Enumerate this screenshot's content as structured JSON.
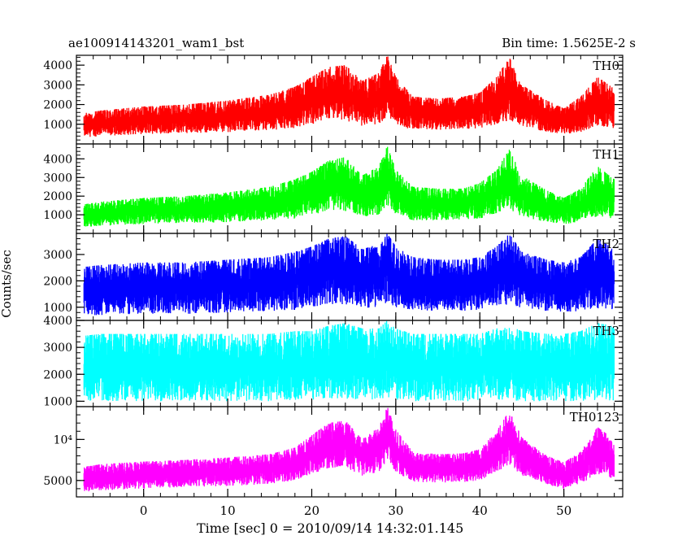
{
  "chart_data": {
    "type": "line",
    "title_left": "ae100914143201_wam1_bst",
    "title_right": "Bin time: 1.5625E-2 s",
    "xlabel": "Time [sec] 0 = 2010/09/14 14:32:01.145",
    "ylabel": "Counts/sec",
    "xlim": [
      -8,
      57
    ],
    "x_ticks": [
      0,
      10,
      20,
      30,
      40,
      50
    ],
    "x_tick_labels": [
      "0",
      "10",
      "20",
      "30",
      "40",
      "50"
    ],
    "panels": [
      {
        "name": "TH0",
        "color": "#ff0000",
        "ylim": [
          0,
          4500
        ],
        "y_ticks": [
          1000,
          2000,
          3000,
          4000
        ],
        "y_tick_labels": [
          "1000",
          "2000",
          "3000",
          "4000"
        ],
        "series": {
          "x": [
            -8,
            -5,
            0,
            5,
            10,
            15,
            18,
            20,
            22,
            24,
            26,
            28,
            29,
            30,
            32,
            35,
            38,
            40,
            42,
            43.5,
            45,
            48,
            50,
            52,
            54,
            56
          ],
          "low": [
            300,
            400,
            500,
            550,
            600,
            700,
            800,
            1000,
            1200,
            1200,
            900,
            1000,
            1400,
            1000,
            700,
            700,
            750,
            800,
            1000,
            1200,
            900,
            600,
            500,
            600,
            900,
            800
          ],
          "high": [
            1500,
            1700,
            1900,
            2000,
            2200,
            2500,
            2900,
            3400,
            3900,
            4000,
            3200,
            3600,
            4500,
            3400,
            2400,
            2300,
            2400,
            2600,
            3400,
            4400,
            3000,
            2200,
            1800,
            2400,
            3400,
            2800
          ]
        }
      },
      {
        "name": "TH1",
        "color": "#00ff00",
        "ylim": [
          0,
          4800
        ],
        "y_ticks": [
          1000,
          2000,
          3000,
          4000
        ],
        "y_tick_labels": [
          "1000",
          "2000",
          "3000",
          "4000"
        ],
        "series": {
          "x": [
            -8,
            -5,
            0,
            5,
            10,
            15,
            18,
            20,
            22,
            24,
            26,
            28,
            29,
            30,
            32,
            35,
            38,
            40,
            42,
            43.5,
            45,
            48,
            50,
            52,
            54,
            56
          ],
          "low": [
            300,
            400,
            500,
            550,
            600,
            700,
            800,
            1000,
            1200,
            1200,
            900,
            1000,
            1500,
            1000,
            700,
            700,
            750,
            800,
            1000,
            1300,
            900,
            600,
            500,
            600,
            900,
            800
          ],
          "high": [
            1500,
            1700,
            1900,
            2000,
            2200,
            2500,
            2900,
            3300,
            3900,
            4100,
            3100,
            3600,
            4700,
            3400,
            2500,
            2400,
            2400,
            2700,
            3400,
            4500,
            3100,
            2300,
            1900,
            2400,
            3600,
            2900
          ]
        }
      },
      {
        "name": "TH2",
        "color": "#0000ff",
        "ylim": [
          500,
          3800
        ],
        "y_ticks": [
          1000,
          2000,
          3000
        ],
        "y_tick_labels": [
          "1000",
          "2000",
          "3000"
        ],
        "series": {
          "x": [
            -8,
            -5,
            0,
            5,
            10,
            15,
            18,
            20,
            22,
            24,
            26,
            28,
            29,
            30,
            32,
            35,
            38,
            40,
            42,
            43.5,
            45,
            48,
            50,
            52,
            54,
            56
          ],
          "low": [
            700,
            700,
            750,
            750,
            800,
            850,
            900,
            1000,
            1100,
            1100,
            950,
            1000,
            1200,
            1000,
            900,
            850,
            850,
            900,
            1000,
            1100,
            950,
            850,
            800,
            850,
            950,
            900
          ],
          "high": [
            2500,
            2600,
            2700,
            2700,
            2800,
            2900,
            3100,
            3300,
            3600,
            3700,
            3200,
            3400,
            3800,
            3300,
            2900,
            2800,
            2800,
            2900,
            3300,
            3800,
            3100,
            2800,
            2700,
            2900,
            3600,
            3200
          ]
        }
      },
      {
        "name": "TH3",
        "color": "#00ffff",
        "ylim": [
          800,
          4000
        ],
        "y_ticks": [
          1000,
          2000,
          3000,
          4000
        ],
        "y_tick_labels": [
          "1000",
          "2000",
          "3000",
          "4000"
        ],
        "series": {
          "x": [
            -8,
            -5,
            0,
            5,
            10,
            15,
            18,
            20,
            22,
            24,
            26,
            28,
            29,
            30,
            32,
            35,
            38,
            40,
            42,
            43.5,
            45,
            48,
            50,
            52,
            54,
            56
          ],
          "low": [
            1000,
            1000,
            1000,
            1000,
            1000,
            1000,
            1050,
            1050,
            1100,
            1100,
            1050,
            1050,
            1100,
            1050,
            1000,
            1000,
            1000,
            1000,
            1050,
            1050,
            1000,
            1000,
            1000,
            1000,
            1050,
            1000
          ],
          "high": [
            3400,
            3500,
            3500,
            3500,
            3500,
            3500,
            3600,
            3600,
            3800,
            3900,
            3700,
            3700,
            4000,
            3700,
            3500,
            3500,
            3500,
            3500,
            3700,
            3800,
            3600,
            3500,
            3500,
            3600,
            3900,
            3800
          ]
        }
      },
      {
        "name": "TH0123",
        "color": "#ff00ff",
        "ylim": [
          3000,
          14000
        ],
        "y_ticks": [
          5000,
          10000
        ],
        "y_tick_labels": [
          "5000",
          "10⁴"
        ],
        "series": {
          "x": [
            -8,
            -5,
            0,
            5,
            10,
            15,
            18,
            20,
            22,
            24,
            26,
            28,
            29,
            30,
            32,
            35,
            38,
            40,
            42,
            43.5,
            45,
            48,
            50,
            52,
            54,
            56
          ],
          "low": [
            3500,
            3800,
            4000,
            4200,
            4300,
            4600,
            5000,
            5800,
            6500,
            6600,
            5500,
            6000,
            7500,
            6000,
            4800,
            4700,
            4800,
            5000,
            6000,
            7000,
            5500,
            4500,
            4000,
            4600,
            5800,
            5200
          ],
          "high": [
            6500,
            7000,
            7300,
            7500,
            7800,
            8200,
            9000,
            10500,
            12000,
            12300,
            10000,
            11500,
            14000,
            11200,
            8500,
            8200,
            8300,
            8800,
            11000,
            13500,
            10200,
            8000,
            7200,
            8500,
            11500,
            10000
          ]
        }
      }
    ]
  }
}
